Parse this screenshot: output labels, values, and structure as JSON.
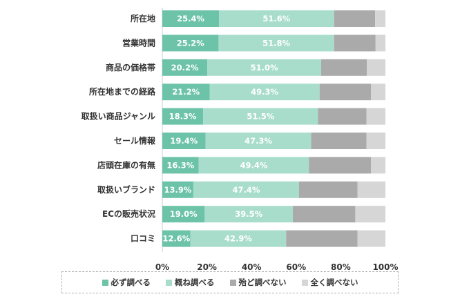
{
  "chart_data": {
    "type": "bar",
    "orientation": "horizontal",
    "stacked": true,
    "categories": [
      "所在地",
      "営業時間",
      "商品の価格帯",
      "所在地までの経路",
      "取扱い商品ジャンル",
      "セール情報",
      "店頭在庫の有無",
      "取扱いブランド",
      "ECの販売状況",
      "口コミ"
    ],
    "series": [
      {
        "name": "必ず調べる",
        "color": "#6cc3a8",
        "values": [
          25.4,
          25.2,
          20.2,
          21.2,
          18.3,
          19.4,
          16.3,
          13.9,
          19.0,
          12.6
        ],
        "labels": [
          "25.4%",
          "25.2%",
          "20.2%",
          "21.2%",
          "18.3%",
          "19.4%",
          "16.3%",
          "13.9%",
          "19.0%",
          "12.6%"
        ]
      },
      {
        "name": "概ね調べる",
        "color": "#a8ddcc",
        "values": [
          51.6,
          51.8,
          51.0,
          49.3,
          51.5,
          47.3,
          49.4,
          47.4,
          39.5,
          42.9
        ],
        "labels": [
          "51.6%",
          "51.8%",
          "51.0%",
          "49.3%",
          "51.5%",
          "47.3%",
          "49.4%",
          "47.4%",
          "39.5%",
          "42.9%"
        ]
      },
      {
        "name": "殆ど調べない",
        "color": "#aaaaaa",
        "values": [
          18.4,
          18.6,
          20.5,
          23.0,
          21.7,
          24.8,
          27.8,
          26.2,
          28.0,
          32.0
        ]
      },
      {
        "name": "全く調べない",
        "color": "#d6d6d6",
        "values": [
          4.6,
          4.4,
          8.3,
          6.5,
          8.5,
          8.5,
          6.5,
          12.5,
          13.5,
          12.5
        ]
      }
    ],
    "xlim": [
      0,
      100
    ],
    "xticks": [
      "0%",
      "20%",
      "40%",
      "60%",
      "80%",
      "100%"
    ],
    "legend_position": "bottom"
  }
}
